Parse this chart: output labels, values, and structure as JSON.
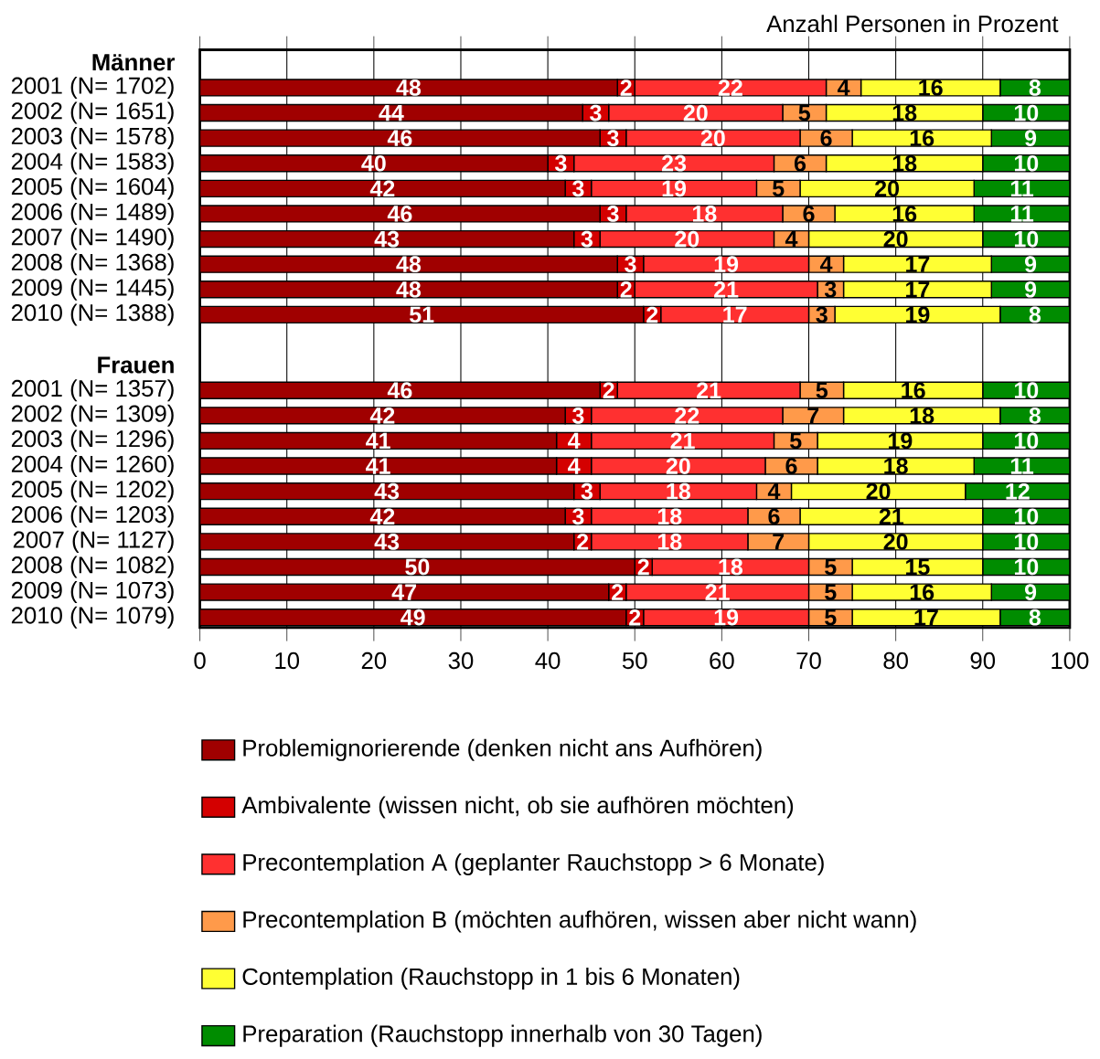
{
  "chart_data": {
    "type": "bar",
    "orientation": "horizontal",
    "stacked": true,
    "xlabel": "Anzahl Personen in Prozent",
    "categories": [
      "Männer",
      "2001 (N= 1702)",
      "2002 (N= 1651)",
      "2003 (N= 1578)",
      "2004 (N= 1583)",
      "2005 (N= 1604)",
      "2006 (N= 1489)",
      "2007 (N= 1490)",
      "2008 (N= 1368)",
      "2009 (N= 1445)",
      "2010 (N= 1388)",
      null,
      "Frauen",
      "2001 (N= 1357)",
      "2002 (N= 1309)",
      "2003 (N= 1296)",
      "2004 (N= 1260)",
      "2005 (N= 1202)",
      "2006 (N= 1203)",
      "2007 (N= 1127)",
      "2008 (N= 1082)",
      "2009 (N= 1073)",
      "2010 (N= 1079)"
    ],
    "series": [
      {
        "name": "Problemignorierende (denken nicht ans Aufhören)",
        "color": "#a00000",
        "values": [
          null,
          48,
          44,
          46,
          40,
          42,
          46,
          43,
          48,
          48,
          51,
          null,
          null,
          46,
          42,
          41,
          41,
          43,
          42,
          43,
          50,
          47,
          49
        ]
      },
      {
        "name": "Ambivalente (wissen nicht, ob sie aufhören möchten)",
        "color": "#d40000",
        "values": [
          null,
          2,
          3,
          3,
          3,
          3,
          3,
          3,
          3,
          2,
          2,
          null,
          null,
          2,
          3,
          4,
          4,
          3,
          3,
          2,
          2,
          2,
          2
        ]
      },
      {
        "name": "Precontemplation A (geplanter Rauchstopp > 6 Monate)",
        "color": "#ff3030",
        "values": [
          null,
          22,
          20,
          20,
          23,
          19,
          18,
          20,
          19,
          21,
          17,
          null,
          null,
          21,
          22,
          21,
          20,
          18,
          18,
          18,
          18,
          21,
          19
        ]
      },
      {
        "name": "Precontemplation B (möchten aufhören, wissen aber nicht wann)",
        "color": "#ff9a4a",
        "values": [
          null,
          4,
          5,
          6,
          6,
          5,
          6,
          4,
          4,
          3,
          3,
          null,
          null,
          5,
          7,
          5,
          6,
          4,
          6,
          7,
          5,
          5,
          5
        ]
      },
      {
        "name": "Contemplation (Rauchstopp in 1 bis 6 Monaten)",
        "color": "#ffff33",
        "values": [
          null,
          16,
          18,
          16,
          18,
          20,
          16,
          20,
          17,
          17,
          19,
          null,
          null,
          16,
          18,
          19,
          18,
          20,
          21,
          20,
          15,
          16,
          17
        ]
      },
      {
        "name": "Preparation (Rauchstopp innerhalb von 30 Tagen)",
        "color": "#008c00",
        "values": [
          null,
          8,
          10,
          9,
          10,
          11,
          11,
          10,
          9,
          9,
          8,
          null,
          null,
          10,
          8,
          10,
          11,
          12,
          10,
          10,
          10,
          9,
          8
        ]
      }
    ],
    "xlim": [
      0,
      100
    ],
    "xticks": [
      0,
      10,
      20,
      30,
      40,
      50,
      60,
      70,
      80,
      90,
      100
    ],
    "grid": "x",
    "legend": "bottom",
    "data_labels": true
  }
}
